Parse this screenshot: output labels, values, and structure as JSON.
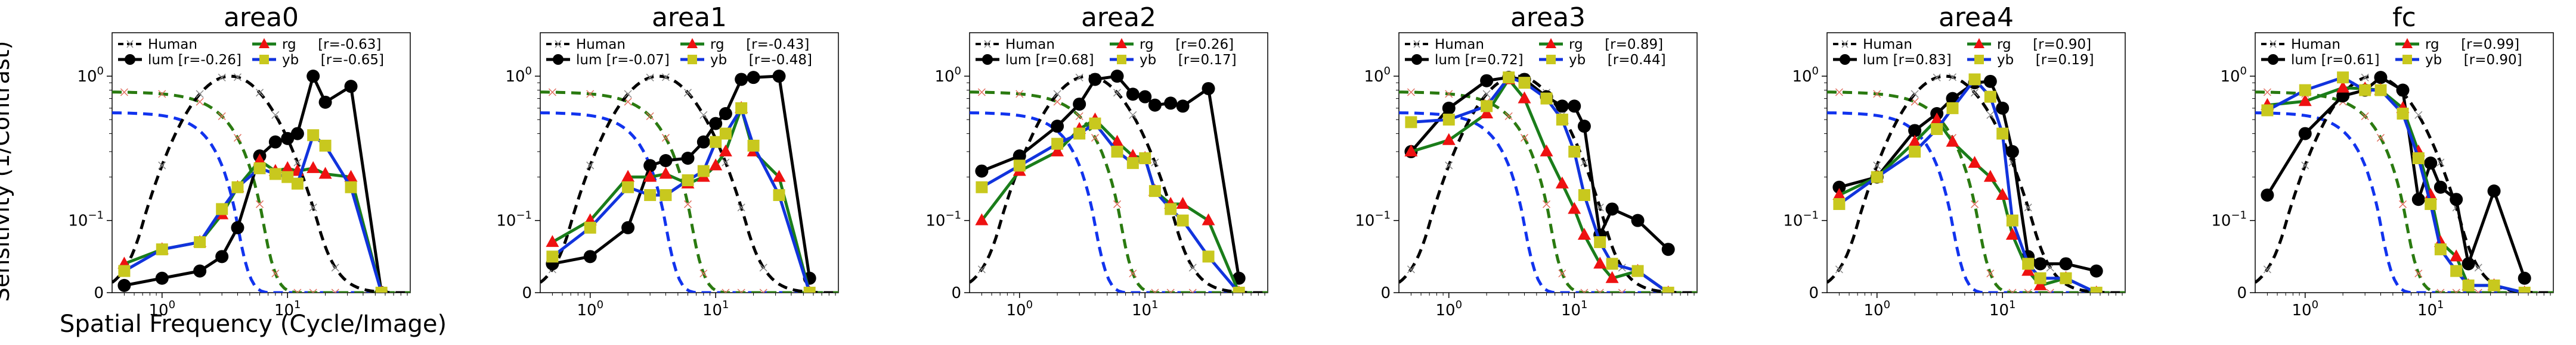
{
  "figure": {
    "ylabel": "Sensitivity (1/Contrast)",
    "xlabel": "Spatial Frequency (Cycle/Image)"
  },
  "colors": {
    "human": "#000000",
    "lum": "#000000",
    "rg": "#1a7d1a",
    "yb": "#1133dd",
    "rg_marker": "#ee1111",
    "yb_marker": "#c8c81e",
    "human_lum": "#000000",
    "human_rg": "#2a7a10",
    "human_yb": "#1133ee"
  },
  "chart_data": [
    {
      "type": "line",
      "title": "area0",
      "xscale": "log",
      "yscale": "symlog",
      "xlim": [
        0.4,
        95
      ],
      "ylim": [
        0,
        2
      ],
      "xticks": [
        "10^0",
        "10^1"
      ],
      "yticks": [
        "0",
        "10^-1",
        "10^0"
      ],
      "legend": [
        "Human",
        "lum [r=-0.26]",
        "rg     [r=-0.63]",
        "yb     [r=-0.65]"
      ],
      "x": [
        0.5,
        1,
        2,
        3,
        4,
        6,
        8,
        10,
        12,
        16,
        20,
        32,
        56
      ],
      "series": [
        {
          "name": "lum",
          "values": [
            0.01,
            0.02,
            0.03,
            0.05,
            0.09,
            0.28,
            0.35,
            0.37,
            0.4,
            1.0,
            0.66,
            0.85,
            0.0
          ]
        },
        {
          "name": "rg",
          "values": [
            0.04,
            0.06,
            0.07,
            0.11,
            0.17,
            0.26,
            0.22,
            0.23,
            0.22,
            0.23,
            0.21,
            0.2,
            0.0
          ]
        },
        {
          "name": "yb",
          "values": [
            0.03,
            0.06,
            0.07,
            0.12,
            0.17,
            0.23,
            0.21,
            0.2,
            0.18,
            0.39,
            0.33,
            0.17,
            0.0
          ]
        }
      ]
    },
    {
      "type": "line",
      "title": "area1",
      "xscale": "log",
      "yscale": "symlog",
      "xlim": [
        0.4,
        95
      ],
      "ylim": [
        0,
        2
      ],
      "xticks": [
        "10^0",
        "10^1"
      ],
      "yticks": [
        "0",
        "10^-1",
        "10^0"
      ],
      "legend": [
        "Human",
        "lum [r=-0.07]",
        "rg     [r=-0.43]",
        "yb     [r=-0.48]"
      ],
      "x": [
        0.5,
        1,
        2,
        3,
        4,
        6,
        8,
        10,
        12,
        16,
        20,
        32,
        56
      ],
      "series": [
        {
          "name": "lum",
          "values": [
            0.04,
            0.05,
            0.09,
            0.24,
            0.26,
            0.27,
            0.35,
            0.47,
            0.55,
            0.95,
            0.98,
            1.0,
            0.02
          ]
        },
        {
          "name": "rg",
          "values": [
            0.07,
            0.1,
            0.2,
            0.2,
            0.21,
            0.18,
            0.2,
            0.24,
            0.3,
            0.6,
            0.3,
            0.2,
            0.0
          ]
        },
        {
          "name": "yb",
          "values": [
            0.05,
            0.09,
            0.17,
            0.15,
            0.15,
            0.19,
            0.22,
            0.35,
            0.4,
            0.6,
            0.33,
            0.15,
            0.0
          ]
        }
      ]
    },
    {
      "type": "line",
      "title": "area2",
      "xscale": "log",
      "yscale": "symlog",
      "xlim": [
        0.4,
        95
      ],
      "ylim": [
        0,
        2
      ],
      "xticks": [
        "10^0",
        "10^1"
      ],
      "yticks": [
        "0",
        "10^-1",
        "10^0"
      ],
      "legend": [
        "Human",
        "lum [r=0.68]",
        "rg     [r=0.26]",
        "yb     [r=0.17]"
      ],
      "x": [
        0.5,
        1,
        2,
        3,
        4,
        6,
        8,
        10,
        12,
        16,
        20,
        32,
        56
      ],
      "series": [
        {
          "name": "lum",
          "values": [
            0.22,
            0.28,
            0.45,
            0.64,
            0.95,
            1.0,
            0.75,
            0.72,
            0.63,
            0.65,
            0.62,
            0.82,
            0.02
          ]
        },
        {
          "name": "rg",
          "values": [
            0.1,
            0.22,
            0.3,
            0.43,
            0.5,
            0.35,
            0.28,
            0.27,
            0.16,
            0.13,
            0.13,
            0.1,
            0.0
          ]
        },
        {
          "name": "yb",
          "values": [
            0.17,
            0.24,
            0.34,
            0.4,
            0.47,
            0.3,
            0.25,
            0.27,
            0.16,
            0.12,
            0.1,
            0.05,
            0.0
          ]
        }
      ]
    },
    {
      "type": "line",
      "title": "area3",
      "xscale": "log",
      "yscale": "symlog",
      "xlim": [
        0.4,
        95
      ],
      "ylim": [
        0,
        2
      ],
      "xticks": [
        "10^0",
        "10^1"
      ],
      "yticks": [
        "0",
        "10^-1",
        "10^0"
      ],
      "legend": [
        "Human",
        "lum [r=0.72]",
        "rg     [r=0.89]",
        "yb     [r=0.44]"
      ],
      "x": [
        0.5,
        1,
        2,
        3,
        4,
        6,
        8,
        10,
        12,
        16,
        20,
        32,
        56
      ],
      "series": [
        {
          "name": "lum",
          "values": [
            0.3,
            0.6,
            0.93,
            0.98,
            0.95,
            0.72,
            0.62,
            0.62,
            0.45,
            0.08,
            0.12,
            0.1,
            0.06
          ]
        },
        {
          "name": "rg",
          "values": [
            0.3,
            0.36,
            0.55,
            0.95,
            0.7,
            0.3,
            0.18,
            0.12,
            0.08,
            0.04,
            0.02,
            0.03,
            0.0
          ]
        },
        {
          "name": "yb",
          "values": [
            0.48,
            0.5,
            0.62,
            0.98,
            0.9,
            0.7,
            0.5,
            0.3,
            0.15,
            0.07,
            0.04,
            0.03,
            0.0
          ]
        }
      ]
    },
    {
      "type": "line",
      "title": "area4",
      "xscale": "log",
      "yscale": "symlog",
      "xlim": [
        0.4,
        95
      ],
      "ylim": [
        0,
        2
      ],
      "xticks": [
        "10^0",
        "10^1"
      ],
      "yticks": [
        "0",
        "10^-1",
        "10^0"
      ],
      "legend": [
        "Human",
        "lum [r=0.83]",
        "rg     [r=0.90]",
        "yb     [r=0.19]"
      ],
      "x": [
        0.5,
        1,
        2,
        3,
        4,
        6,
        8,
        10,
        12,
        16,
        20,
        32,
        56
      ],
      "series": [
        {
          "name": "lum",
          "values": [
            0.17,
            0.2,
            0.42,
            0.55,
            0.7,
            0.9,
            0.92,
            0.6,
            0.3,
            0.05,
            0.04,
            0.04,
            0.03
          ]
        },
        {
          "name": "rg",
          "values": [
            0.15,
            0.2,
            0.35,
            0.5,
            0.35,
            0.25,
            0.2,
            0.15,
            0.08,
            0.03,
            0.01,
            0.02,
            0.0
          ]
        },
        {
          "name": "yb",
          "values": [
            0.13,
            0.2,
            0.3,
            0.43,
            0.6,
            0.95,
            0.72,
            0.4,
            0.1,
            0.04,
            0.02,
            0.02,
            0.0
          ]
        }
      ]
    },
    {
      "type": "line",
      "title": "fc",
      "xscale": "log",
      "yscale": "symlog",
      "xlim": [
        0.4,
        95
      ],
      "ylim": [
        0,
        2
      ],
      "xticks": [
        "10^0",
        "10^1"
      ],
      "yticks": [
        "0",
        "10^-1",
        "10^0"
      ],
      "legend": [
        "Human",
        "lum [r=0.61]",
        "rg     [r=0.99]",
        "yb     [r=0.90]"
      ],
      "x": [
        0.5,
        1,
        2,
        3,
        4,
        6,
        8,
        10,
        12,
        16,
        20,
        32,
        56
      ],
      "series": [
        {
          "name": "lum",
          "values": [
            0.15,
            0.4,
            0.73,
            0.8,
            0.98,
            0.8,
            0.14,
            0.25,
            0.17,
            0.14,
            0.04,
            0.16,
            0.02
          ]
        },
        {
          "name": "rg",
          "values": [
            0.63,
            0.67,
            0.83,
            0.82,
            0.8,
            0.6,
            0.3,
            0.15,
            0.07,
            0.05,
            0.01,
            0.01,
            0.0
          ]
        },
        {
          "name": "yb",
          "values": [
            0.58,
            0.8,
            0.98,
            0.8,
            0.8,
            0.55,
            0.27,
            0.13,
            0.06,
            0.03,
            0.01,
            0.01,
            0.0
          ]
        }
      ]
    }
  ]
}
